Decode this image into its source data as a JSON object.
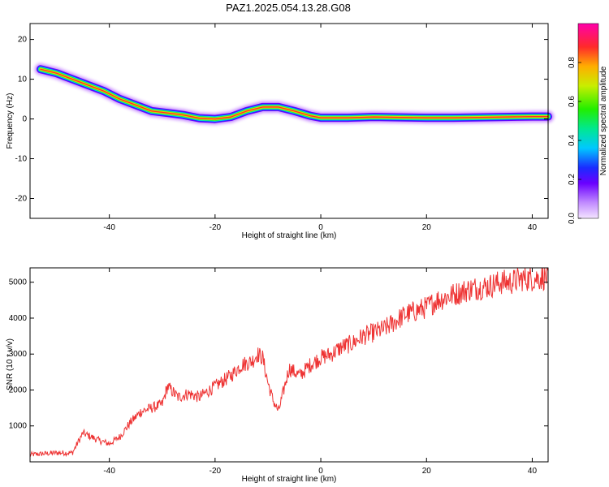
{
  "title": "PAZ1.2025.054.13.28.G08",
  "chart_data": [
    {
      "type": "heatmap",
      "xlabel": "Height of straight line (km)",
      "ylabel": "Frequency (Hz)",
      "xlim": [
        -55,
        43
      ],
      "ylim": [
        -25,
        24
      ],
      "xticks": [
        -40,
        -20,
        0,
        20,
        40
      ],
      "yticks": [
        -20,
        -10,
        0,
        10,
        20
      ],
      "colorbar": {
        "label": "Normalized spectral amplitude",
        "range": [
          0,
          1
        ],
        "ticks": [
          0.0,
          0.2,
          0.4,
          0.6,
          0.8
        ]
      },
      "ridge": {
        "x": [
          -53,
          -50,
          -47,
          -44,
          -41,
          -38,
          -35,
          -32,
          -29,
          -26,
          -23,
          -20,
          -17,
          -14,
          -11,
          -8,
          -5,
          -2,
          0,
          5,
          10,
          15,
          20,
          25,
          30,
          35,
          40,
          43
        ],
        "frequency": [
          12.5,
          11.5,
          10.0,
          8.5,
          7.0,
          5.0,
          3.5,
          2.0,
          1.5,
          1.0,
          0.2,
          0.0,
          0.5,
          2.0,
          3.0,
          3.0,
          2.0,
          0.8,
          0.3,
          0.3,
          0.5,
          0.4,
          0.3,
          0.3,
          0.4,
          0.5,
          0.6,
          0.6
        ]
      }
    },
    {
      "type": "line",
      "xlabel": "Height of straight line (km)",
      "ylabel": "SNR (10 * v/v)",
      "xlim": [
        -55,
        43
      ],
      "ylim": [
        0,
        5400
      ],
      "xticks": [
        -40,
        -20,
        0,
        20,
        40
      ],
      "yticks": [
        1000,
        2000,
        3000,
        4000,
        5000
      ],
      "color": "#ee3333",
      "series": [
        {
          "x": [
            -55,
            -50,
            -47,
            -45,
            -42,
            -40,
            -38,
            -36,
            -34,
            -32,
            -30,
            -29,
            -27,
            -25,
            -23,
            -21,
            -19,
            -17,
            -15,
            -13,
            -12,
            -11,
            -10,
            -9,
            -8,
            -7,
            -6,
            -4,
            -2,
            0,
            2,
            4,
            6,
            8,
            10,
            12,
            14,
            16,
            18,
            20,
            22,
            24,
            26,
            28,
            30,
            32,
            34,
            36,
            38,
            40,
            43
          ],
          "y": [
            200,
            250,
            250,
            800,
            600,
            500,
            700,
            1100,
            1400,
            1500,
            1600,
            2100,
            1800,
            1900,
            1800,
            2000,
            2200,
            2400,
            2700,
            2800,
            3000,
            2900,
            2200,
            1700,
            1400,
            2000,
            2600,
            2400,
            2700,
            2900,
            3000,
            3200,
            3300,
            3500,
            3600,
            3700,
            3900,
            4100,
            4200,
            4300,
            4500,
            4600,
            4700,
            4800,
            4850,
            4900,
            5000,
            5000,
            5100,
            5100,
            5150
          ]
        }
      ]
    }
  ]
}
